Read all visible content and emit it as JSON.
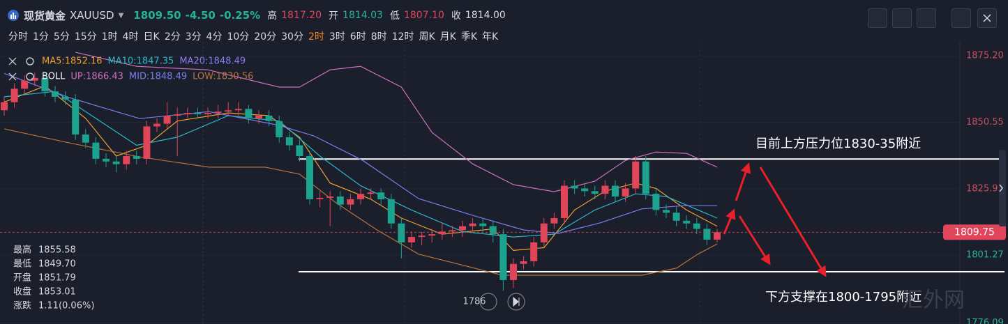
{
  "header": {
    "name": "现货黄金",
    "symbol": "XAUUSD",
    "price": "1809.50",
    "change": "-4.50",
    "change_pct": "-0.25%",
    "stats": [
      {
        "label": "高",
        "value": "1817.20"
      },
      {
        "label": "开",
        "value": "1814.03"
      },
      {
        "label": "低",
        "value": "1807.10"
      },
      {
        "label": "收",
        "value": "1814.00"
      }
    ]
  },
  "timeframes": [
    "分时",
    "1分",
    "5分",
    "15分",
    "1时",
    "4时",
    "日K",
    "2分",
    "3分",
    "4分",
    "10分",
    "20分",
    "30分",
    "2时",
    "3时",
    "6时",
    "8时",
    "12时",
    "周K",
    "月K",
    "季K",
    "年K"
  ],
  "active_timeframe": "2时",
  "chart_data": {
    "type": "candlestick",
    "up_color": "#e0455a",
    "down_color": "#1ca38f",
    "ylim": [
      1775.7,
      1880.4
    ],
    "yticks": [
      {
        "value": 1875.2,
        "label": "1875.20"
      },
      1850.55,
      1825.9,
      1801.27,
      1776.09
    ],
    "grid": true,
    "open": [
      1855,
      1858,
      1863,
      1866,
      1867,
      1862,
      1860,
      1859,
      1846,
      1843,
      1837,
      1836,
      1835,
      1838,
      1837,
      1849,
      1850,
      1853,
      1853.5,
      1854,
      1853.5,
      1854,
      1854.5,
      1855,
      1855.5,
      1852,
      1853,
      1851,
      1845,
      1842,
      1838,
      1822,
      1822.5,
      1823,
      1820,
      1822,
      1824,
      1824.5,
      1822,
      1813,
      1806,
      1808,
      1808.5,
      1809,
      1810,
      1810.5,
      1812,
      1813,
      1812,
      1809,
      1792,
      1798,
      1799,
      1806,
      1813,
      1815,
      1827,
      1826,
      1825,
      1824,
      1827,
      1823,
      1826,
      1836,
      1824,
      1818,
      1817,
      1814,
      1813,
      1811,
      1807
    ],
    "high": [
      1860,
      1865,
      1868,
      1869,
      1869,
      1864,
      1862,
      1861,
      1848,
      1845,
      1839,
      1838,
      1840,
      1840,
      1851,
      1852,
      1858,
      1856,
      1856,
      1856,
      1856,
      1857,
      1858,
      1858,
      1857,
      1855,
      1855,
      1853,
      1847,
      1844,
      1840,
      1825,
      1825,
      1825,
      1824,
      1826,
      1826,
      1826,
      1824,
      1815,
      1810,
      1810,
      1811,
      1813,
      1812,
      1814,
      1815,
      1815,
      1814,
      1811,
      1800,
      1801,
      1808,
      1815,
      1817,
      1829,
      1829,
      1828,
      1827,
      1829,
      1829,
      1828,
      1838,
      1838,
      1826,
      1820,
      1819,
      1816,
      1815,
      1813,
      1811
    ],
    "low": [
      1853,
      1856,
      1861,
      1864,
      1860,
      1858,
      1857,
      1844,
      1841,
      1835,
      1834,
      1832,
      1833,
      1835,
      1835,
      1847,
      1848,
      1838,
      1852,
      1852,
      1852,
      1852,
      1853,
      1853,
      1850,
      1850,
      1849,
      1843,
      1840,
      1836,
      1820,
      1819,
      1812,
      1818,
      1818,
      1820,
      1822,
      1820,
      1811,
      1800,
      1804,
      1805,
      1806,
      1807,
      1808,
      1808,
      1810,
      1810,
      1806,
      1788,
      1789,
      1796,
      1797,
      1804,
      1811,
      1813,
      1824,
      1823,
      1822,
      1822,
      1821,
      1821,
      1824,
      1822,
      1816,
      1815,
      1812,
      1811,
      1809,
      1805,
      1806
    ],
    "close": [
      1858,
      1863,
      1866,
      1867,
      1862,
      1860,
      1859,
      1846,
      1843,
      1837,
      1836,
      1835,
      1838,
      1837,
      1849,
      1850,
      1853,
      1853.5,
      1854,
      1853.5,
      1854,
      1854.5,
      1855,
      1855.5,
      1852,
      1853,
      1851,
      1845,
      1842,
      1838,
      1822,
      1822.5,
      1823,
      1820,
      1822,
      1824,
      1824.5,
      1822,
      1813,
      1806,
      1808,
      1808.5,
      1809,
      1810,
      1810.5,
      1812,
      1813,
      1812,
      1809,
      1792,
      1798,
      1799,
      1806,
      1813,
      1815,
      1827,
      1826,
      1825,
      1824,
      1827,
      1823,
      1826,
      1836,
      1824,
      1818,
      1817,
      1814,
      1813,
      1811,
      1807,
      1809.75
    ],
    "indicator_rows": [
      {
        "name": null,
        "series": [
          0,
          1
        ]
      },
      {
        "name": "BOLL",
        "series": [
          2,
          3,
          4
        ]
      }
    ],
    "ma20_label": "MA20:1848.49",
    "ma20_color": "#8a7cf0",
    "overlays": [
      {
        "name": "MA5:1852.16",
        "color": "#f0a030",
        "x": [
          0,
          4,
          8,
          11,
          14,
          17,
          22,
          26,
          29,
          32,
          36,
          39,
          43,
          48,
          50,
          53,
          56,
          59,
          62,
          64,
          67,
          70
        ],
        "values": [
          1858,
          1864,
          1852,
          1838,
          1842,
          1851,
          1854,
          1853,
          1845,
          1828,
          1822,
          1815,
          1809,
          1811,
          1803,
          1804,
          1818,
          1825,
          1828,
          1826,
          1818,
          1812
        ]
      },
      {
        "name": "MA10:1847.35",
        "color": "#2ab8c8",
        "x": [
          0,
          5,
          9,
          13,
          17,
          22,
          27,
          31,
          35,
          40,
          45,
          50,
          54,
          58,
          62,
          65,
          70
        ],
        "values": [
          1860,
          1862,
          1852,
          1842,
          1845,
          1853,
          1851,
          1838,
          1827,
          1818,
          1810,
          1808,
          1809,
          1818,
          1824,
          1823,
          1815
        ]
      },
      {
        "name": "UP:1866.43",
        "color": "#d070c0",
        "x": [
          7,
          13,
          20,
          27,
          29,
          32,
          35,
          39,
          42,
          46,
          50,
          54,
          58,
          61,
          64,
          67,
          70
        ],
        "values": [
          1876.5,
          1871.3,
          1870,
          1863.6,
          1863.6,
          1870,
          1871.3,
          1863.6,
          1846.8,
          1835.1,
          1827.4,
          1824.8,
          1828.7,
          1836.4,
          1839.5,
          1839,
          1833.9
        ]
      },
      {
        "name": "MID:1848.49",
        "color": "#7b7ff0",
        "x": [
          0,
          6.4,
          13.3,
          20.1,
          27,
          30.4,
          35.2,
          40.7,
          46.2,
          51,
          54.4,
          58.5,
          62.6,
          66.7,
          70
        ],
        "values": [
          1868.7,
          1859.7,
          1851.9,
          1854.5,
          1849.4,
          1845.5,
          1836.4,
          1822.2,
          1815.8,
          1810.6,
          1809.3,
          1813.2,
          1818.4,
          1819.6,
          1819.6
        ]
      },
      {
        "name": "LOW:1830.56",
        "color": "#b8743a",
        "x": [
          0,
          6.4,
          13.3,
          20.1,
          25.6,
          29,
          32.5,
          36.6,
          40.7,
          46.2,
          48.9,
          51.6,
          57.8,
          62.6,
          66,
          68.1,
          70
        ],
        "values": [
          1848.1,
          1842.9,
          1837.7,
          1833.9,
          1833.9,
          1831.3,
          1820.9,
          1810.6,
          1801.6,
          1796.4,
          1793.8,
          1793.8,
          1793.8,
          1793.8,
          1796.4,
          1801.6,
          1805.4
        ]
      }
    ],
    "levels": [
      1836.9,
      1795.1
    ],
    "annotations": [
      "目前上方压力位1830-35附近",
      "下方支撑在1800-1795附近"
    ],
    "info": [
      {
        "label": "最高",
        "value": "1855.58"
      },
      {
        "label": "最低",
        "value": "1849.70"
      },
      {
        "label": "开盘",
        "value": "1851.79"
      },
      {
        "label": "收盘",
        "value": "1853.01"
      },
      {
        "label": "涨跌",
        "value": "1.11(0.06%)"
      }
    ],
    "low_marker": "1786"
  },
  "watermark": "汇外网"
}
